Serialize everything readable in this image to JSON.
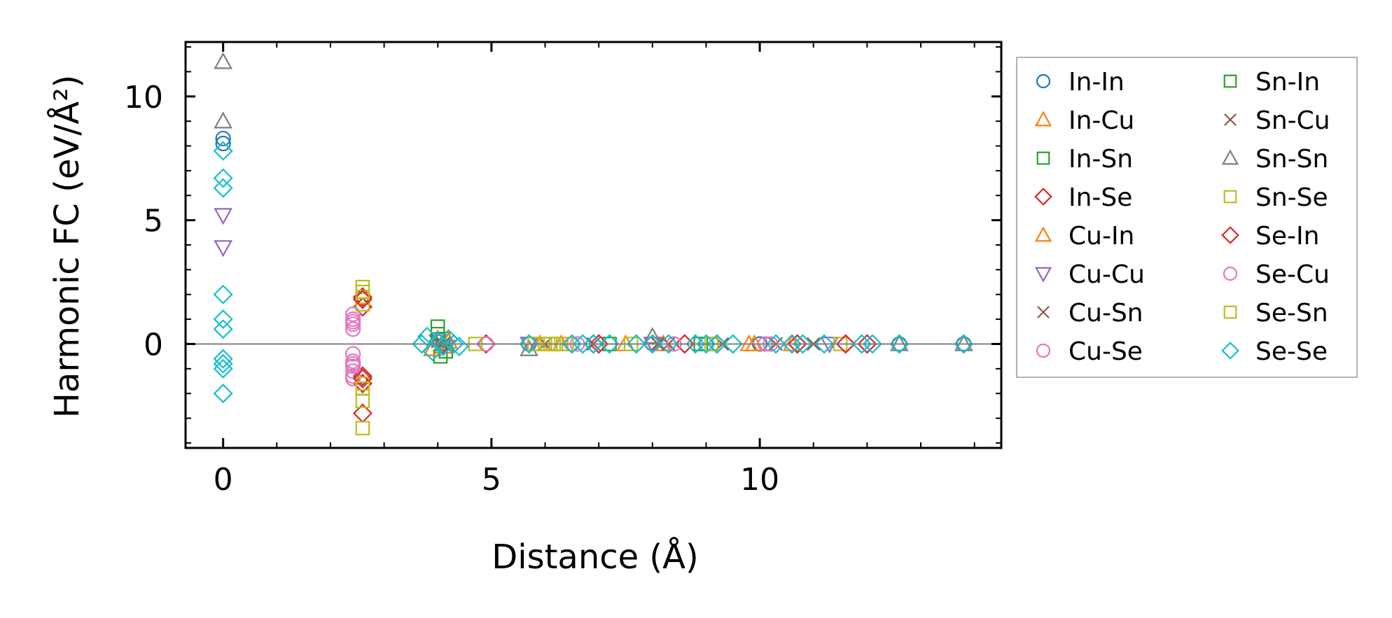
{
  "chart_data": {
    "type": "scatter",
    "xlabel": "Distance (Å)",
    "ylabel": "Harmonic FC (eV/Å²)",
    "xlim": [
      -0.7,
      14.5
    ],
    "ylim": [
      -4.2,
      12.2
    ],
    "xticks": [
      0,
      5,
      10
    ],
    "xtick_labels": [
      "0",
      "5",
      "10"
    ],
    "yticks": [
      0,
      5,
      10
    ],
    "ytick_labels": [
      "0",
      "5",
      "10"
    ],
    "grid": false,
    "zero_line": true,
    "legend_position": "outside-right",
    "legend_columns": 2,
    "series": [
      {
        "name": "In-In",
        "marker": "circle",
        "color": "#1f77b4",
        "x": [
          0,
          0,
          5.7,
          8.0,
          10.0,
          12.6,
          13.8
        ],
        "y": [
          8.3,
          8.1,
          0.0,
          0.0,
          0.0,
          0.0,
          0.0
        ]
      },
      {
        "name": "In-Cu",
        "marker": "triangle-up",
        "color": "#ff7f0e",
        "x": [
          4.0,
          4.1,
          5.9,
          6.3,
          8.2,
          9.8,
          10.6
        ],
        "y": [
          0.2,
          -0.1,
          0.0,
          0.0,
          0.0,
          0.0,
          0.0
        ]
      },
      {
        "name": "In-Sn",
        "marker": "square",
        "color": "#2ca02c",
        "x": [
          4.0,
          4.05,
          4.1,
          6.1,
          7.2,
          9.0
        ],
        "y": [
          0.7,
          -0.5,
          0.2,
          0.0,
          0.0,
          0.0
        ]
      },
      {
        "name": "In-Se",
        "marker": "diamond",
        "color": "#d62728",
        "x": [
          2.6,
          2.6,
          2.6,
          2.6,
          2.6,
          4.9,
          6.9,
          8.6,
          10.7,
          12.0
        ],
        "y": [
          1.9,
          1.5,
          -1.3,
          -1.6,
          -2.8,
          0.0,
          0.0,
          0.0,
          0.0,
          0.0
        ]
      },
      {
        "name": "Cu-In",
        "marker": "triangle-up",
        "color": "#ff7f0e",
        "x": [
          3.9,
          4.2,
          7.5,
          9.9
        ],
        "y": [
          -0.2,
          0.1,
          0.0,
          0.0
        ]
      },
      {
        "name": "Cu-Cu",
        "marker": "triangle-down",
        "color": "#9467bd",
        "x": [
          0,
          0,
          4.0,
          4.1,
          5.7,
          8.0,
          11.3
        ],
        "y": [
          5.2,
          3.9,
          0.1,
          -0.1,
          0.0,
          0.0,
          0.0
        ]
      },
      {
        "name": "Cu-Sn",
        "marker": "x",
        "color": "#8c564b",
        "x": [
          4.0,
          4.2,
          6.9,
          8.3,
          9.3,
          11.0
        ],
        "y": [
          0.1,
          -0.1,
          0.0,
          0.0,
          0.0,
          0.0
        ]
      },
      {
        "name": "Cu-Se",
        "marker": "circle",
        "color": "#e377c2",
        "x": [
          2.42,
          2.42,
          2.42,
          2.42,
          2.42,
          2.42,
          2.42,
          2.42,
          2.42,
          2.42,
          4.9,
          6.5,
          8.0,
          10.1
        ],
        "y": [
          1.2,
          1.0,
          0.8,
          0.6,
          -0.4,
          -0.7,
          -0.9,
          -1.1,
          -1.3,
          -1.4,
          0.0,
          0.0,
          0.0,
          0.0
        ]
      },
      {
        "name": "Sn-In",
        "marker": "square",
        "color": "#2ca02c",
        "x": [
          4.0,
          4.15,
          6.2,
          8.9
        ],
        "y": [
          0.4,
          -0.3,
          0.0,
          0.0
        ]
      },
      {
        "name": "Sn-Cu",
        "marker": "x",
        "color": "#8c564b",
        "x": [
          4.1,
          6.0,
          8.1,
          10.3
        ],
        "y": [
          0.0,
          0.0,
          0.0,
          0.0
        ]
      },
      {
        "name": "Sn-Sn",
        "marker": "triangle-up",
        "color": "#7f7f7f",
        "x": [
          0,
          0,
          5.7,
          8.0,
          12.6,
          13.8
        ],
        "y": [
          11.4,
          9.0,
          -0.2,
          0.3,
          0.0,
          0.0
        ]
      },
      {
        "name": "Sn-Se",
        "marker": "square",
        "color": "#bcbd22",
        "x": [
          2.6,
          2.6,
          2.6,
          2.6,
          2.6,
          2.6,
          4.7,
          6.0,
          6.2,
          6.3,
          7.6,
          11.5
        ],
        "y": [
          2.3,
          1.9,
          1.6,
          -1.6,
          -2.3,
          -3.4,
          0.0,
          0.0,
          0.0,
          0.0,
          0.0,
          0.0
        ]
      },
      {
        "name": "Se-In",
        "marker": "diamond",
        "color": "#d62728",
        "x": [
          2.6,
          2.6,
          7.0,
          9.2,
          11.6
        ],
        "y": [
          1.8,
          -1.4,
          0.0,
          0.0,
          0.0
        ]
      },
      {
        "name": "Se-Cu",
        "marker": "circle",
        "color": "#e377c2",
        "x": [
          2.42,
          2.42,
          6.6,
          8.4,
          10.2
        ],
        "y": [
          0.9,
          -0.8,
          0.0,
          0.0,
          0.0
        ]
      },
      {
        "name": "Se-Sn",
        "marker": "square",
        "color": "#bcbd22",
        "x": [
          2.6,
          2.6,
          5.8,
          6.1,
          6.4,
          9.1
        ],
        "y": [
          2.1,
          -1.8,
          0.0,
          0.0,
          0.0,
          0.0
        ]
      },
      {
        "name": "Se-Se",
        "marker": "diamond",
        "color": "#17becf",
        "x": [
          0,
          0,
          0,
          0,
          0,
          0,
          0,
          0,
          0,
          0,
          3.7,
          3.8,
          3.9,
          4.0,
          4.1,
          4.2,
          4.3,
          4.4,
          5.7,
          6.5,
          6.7,
          6.9,
          7.2,
          7.7,
          8.0,
          8.3,
          8.8,
          9.0,
          9.2,
          9.5,
          10.3,
          10.6,
          10.8,
          11.2,
          11.9,
          12.1,
          12.6,
          13.8
        ],
        "y": [
          7.8,
          6.7,
          6.3,
          2.0,
          1.0,
          0.6,
          -0.6,
          -1.0,
          -2.0,
          -0.8,
          0.0,
          0.3,
          -0.3,
          0.1,
          -0.1,
          0.2,
          0.0,
          -0.1,
          0.0,
          0.0,
          0.0,
          0.0,
          0.0,
          0.0,
          0.0,
          0.0,
          0.0,
          0.0,
          0.0,
          0.0,
          0.0,
          0.0,
          0.0,
          0.0,
          0.0,
          0.0,
          0.0,
          0.0
        ]
      }
    ]
  }
}
